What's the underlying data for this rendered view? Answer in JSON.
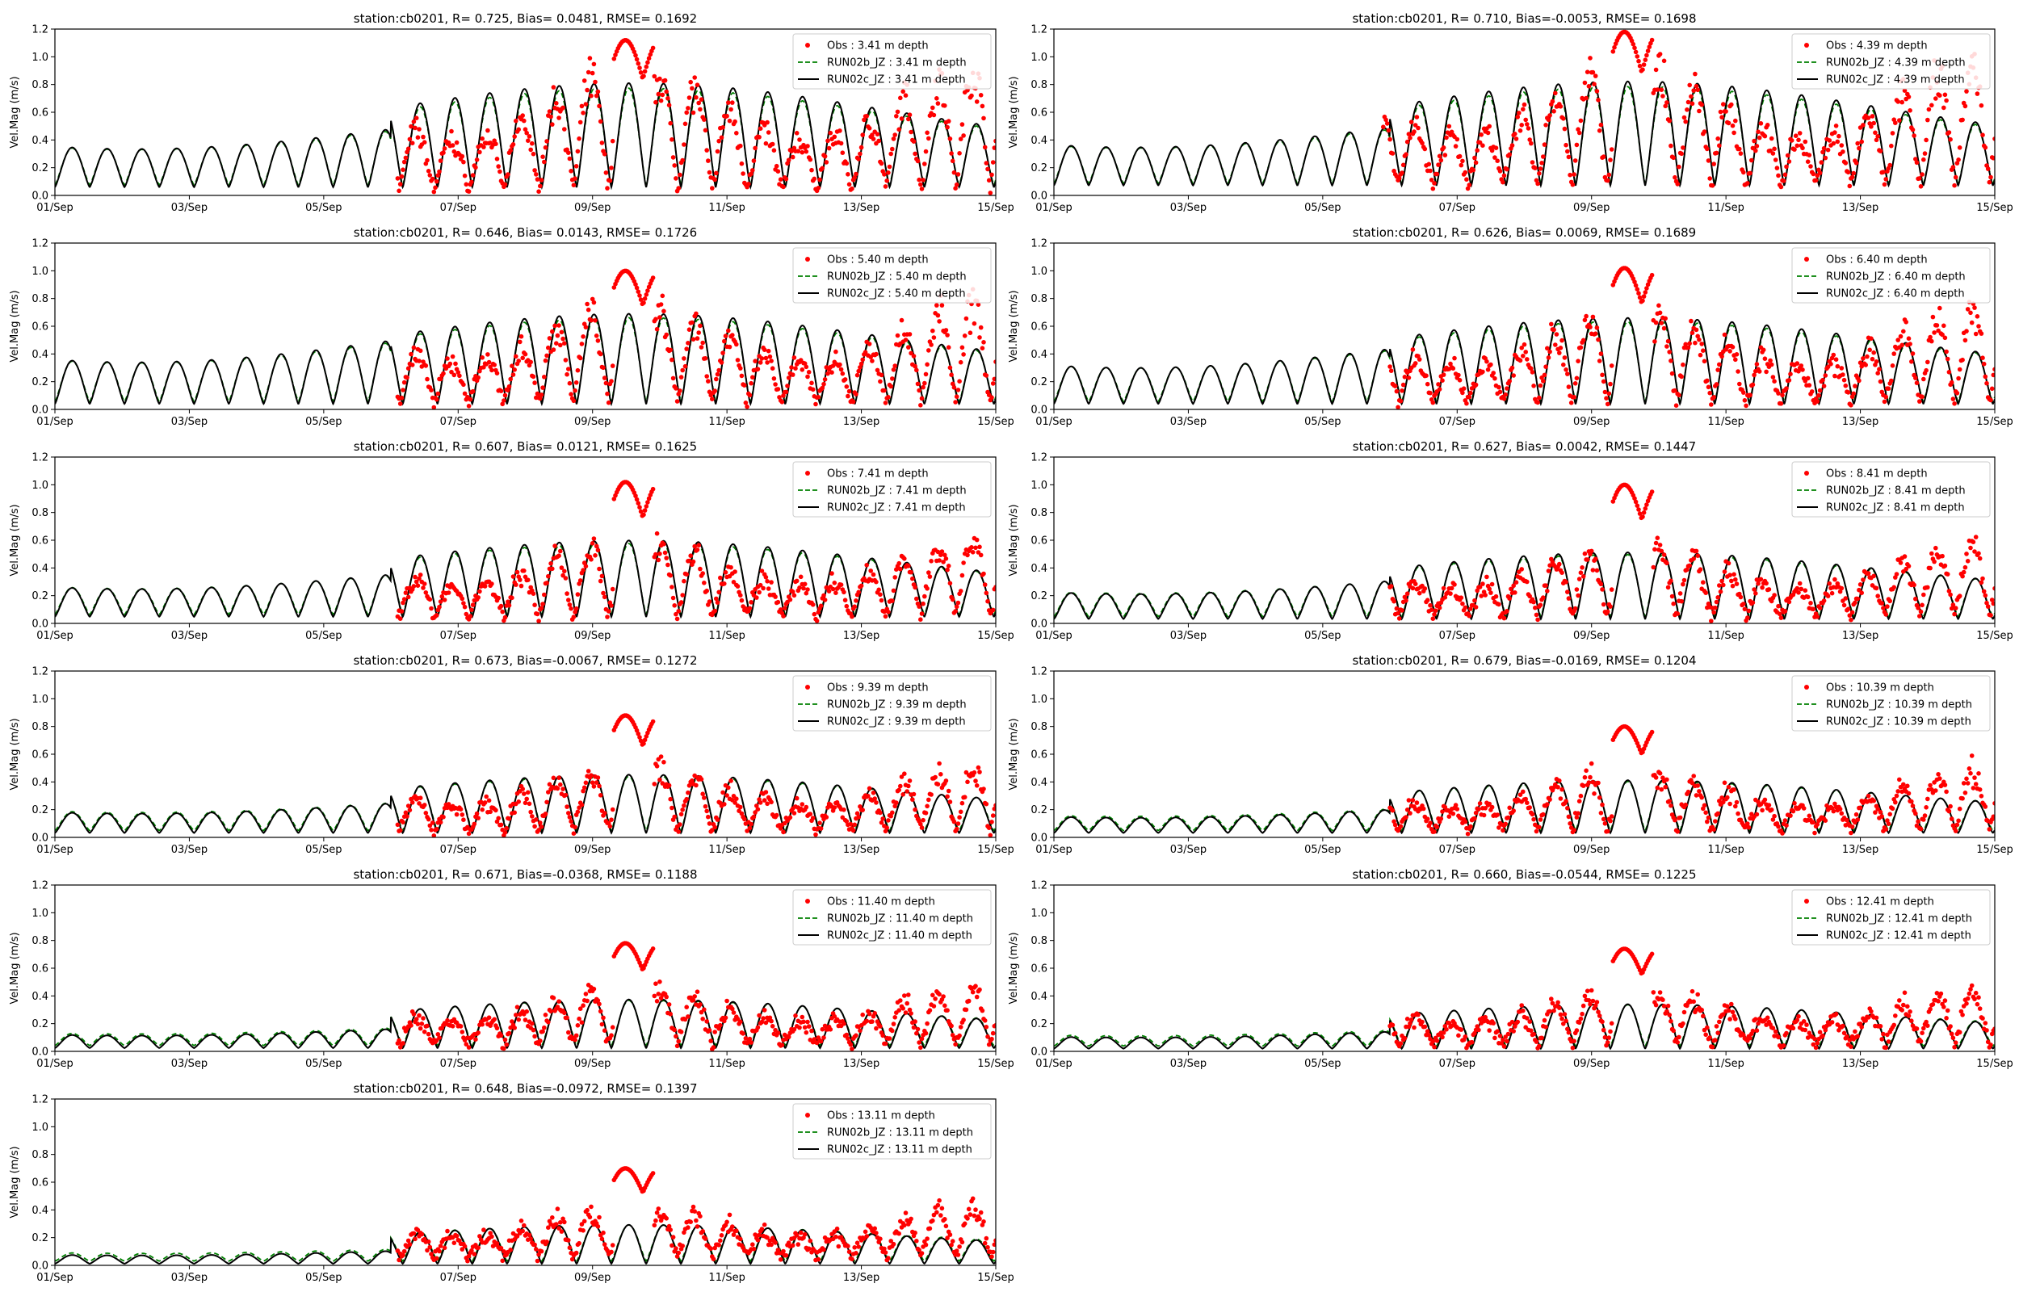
{
  "figure": {
    "ylabel": "Vel.Mag (m/s)",
    "x_ticks": [
      "01/Sep",
      "03/Sep",
      "05/Sep",
      "07/Sep",
      "09/Sep",
      "11/Sep",
      "13/Sep",
      "15/Sep"
    ],
    "y_ticks": [
      "0.0",
      "0.2",
      "0.4",
      "0.6",
      "0.8",
      "1.0",
      "1.2"
    ],
    "xlim_days": [
      0,
      14
    ],
    "ylim": [
      0,
      1.2
    ],
    "colors": {
      "obs": "#ff0000",
      "run02b": "#008000",
      "run02c": "#000000"
    },
    "legend_placement": "top-right"
  },
  "chart_data": [
    {
      "type": "line",
      "title": "station:cb0201, R= 0.725, Bias= 0.0481, RMSE= 0.1692",
      "legend": [
        "Obs : 3.41 m depth",
        "RUN02b_JZ : 3.41 m depth",
        "RUN02c_JZ : 3.41 m depth"
      ],
      "model_base": 0.15,
      "model_amp": 0.55,
      "model_amp_late": 0.75,
      "obs_base": 0.1,
      "obs_amp": 0.85,
      "obs_start_day": 5.1,
      "obs_peak": 1.12
    },
    {
      "type": "line",
      "title": "station:cb0201, R= 0.710, Bias=-0.0053, RMSE= 0.1698",
      "legend": [
        "Obs : 4.39 m depth",
        "RUN02b_JZ : 4.39 m depth",
        "RUN02c_JZ : 4.39 m depth"
      ],
      "model_base": 0.18,
      "model_amp": 0.55,
      "model_amp_late": 0.75,
      "obs_base": 0.15,
      "obs_amp": 0.85,
      "obs_start_day": 4.9,
      "obs_peak": 1.18
    },
    {
      "type": "line",
      "title": "station:cb0201, R= 0.646, Bias= 0.0143, RMSE= 0.1726",
      "legend": [
        "Obs : 5.40 m depth",
        "RUN02b_JZ : 5.40 m depth",
        "RUN02c_JZ : 5.40 m depth"
      ],
      "model_base": 0.1,
      "model_amp": 0.6,
      "model_amp_late": 0.65,
      "obs_base": 0.1,
      "obs_amp": 0.7,
      "obs_start_day": 5.1,
      "obs_peak": 1.0
    },
    {
      "type": "line",
      "title": "station:cb0201, R= 0.626, Bias= 0.0069, RMSE= 0.1689",
      "legend": [
        "Obs : 6.40 m depth",
        "RUN02b_JZ : 6.40 m depth",
        "RUN02c_JZ : 6.40 m depth"
      ],
      "model_base": 0.1,
      "model_amp": 0.52,
      "model_amp_late": 0.62,
      "obs_base": 0.1,
      "obs_amp": 0.65,
      "obs_start_day": 5.0,
      "obs_peak": 1.02
    },
    {
      "type": "line",
      "title": "station:cb0201, R= 0.607, Bias= 0.0121, RMSE= 0.1625",
      "legend": [
        "Obs : 7.41 m depth",
        "RUN02b_JZ : 7.41 m depth",
        "RUN02c_JZ : 7.41 m depth"
      ],
      "model_base": 0.12,
      "model_amp": 0.4,
      "model_amp_late": 0.55,
      "obs_base": 0.1,
      "obs_amp": 0.55,
      "obs_start_day": 5.1,
      "obs_peak": 1.02
    },
    {
      "type": "line",
      "title": "station:cb0201, R= 0.627, Bias= 0.0042, RMSE= 0.1447",
      "legend": [
        "Obs : 8.41 m depth",
        "RUN02b_JZ : 8.41 m depth",
        "RUN02c_JZ : 8.41 m depth"
      ],
      "model_base": 0.08,
      "model_amp": 0.36,
      "model_amp_late": 0.48,
      "obs_base": 0.1,
      "obs_amp": 0.5,
      "obs_start_day": 5.0,
      "obs_peak": 1.0
    },
    {
      "type": "line",
      "title": "station:cb0201, R= 0.673, Bias=-0.0067, RMSE= 0.1272",
      "legend": [
        "Obs : 9.39 m depth",
        "RUN02b_JZ : 9.39 m depth",
        "RUN02c_JZ : 9.39 m depth"
      ],
      "model_base": 0.08,
      "model_amp": 0.28,
      "model_amp_late": 0.42,
      "obs_base": 0.1,
      "obs_amp": 0.45,
      "obs_start_day": 5.1,
      "obs_peak": 0.88
    },
    {
      "type": "line",
      "title": "station:cb0201, R= 0.679, Bias=-0.0169, RMSE= 0.1204",
      "legend": [
        "Obs : 10.39 m depth",
        "RUN02b_JZ : 10.39 m depth",
        "RUN02c_JZ : 10.39 m depth"
      ],
      "model_base": 0.08,
      "model_amp": 0.22,
      "model_amp_late": 0.38,
      "obs_base": 0.1,
      "obs_amp": 0.42,
      "obs_start_day": 5.0,
      "obs_peak": 0.8
    },
    {
      "type": "line",
      "title": "station:cb0201, R= 0.671, Bias=-0.0368, RMSE= 0.1188",
      "legend": [
        "Obs : 11.40 m depth",
        "RUN02b_JZ : 11.40 m depth",
        "RUN02c_JZ : 11.40 m depth"
      ],
      "model_base": 0.06,
      "model_amp": 0.18,
      "model_amp_late": 0.35,
      "obs_base": 0.1,
      "obs_amp": 0.4,
      "obs_start_day": 5.1,
      "obs_peak": 0.78
    },
    {
      "type": "line",
      "title": "station:cb0201, R= 0.660, Bias=-0.0544, RMSE= 0.1225",
      "legend": [
        "Obs : 12.41 m depth",
        "RUN02b_JZ : 12.41 m depth",
        "RUN02c_JZ : 12.41 m depth"
      ],
      "model_base": 0.05,
      "model_amp": 0.16,
      "model_amp_late": 0.32,
      "obs_base": 0.1,
      "obs_amp": 0.38,
      "obs_start_day": 5.0,
      "obs_peak": 0.74
    },
    {
      "type": "line",
      "title": "station:cb0201, R= 0.648, Bias=-0.0972, RMSE= 0.1397",
      "legend": [
        "Obs : 13.11 m depth",
        "RUN02b_JZ : 13.11 m depth",
        "RUN02c_JZ : 13.11 m depth"
      ],
      "model_base": 0.03,
      "model_amp": 0.12,
      "model_amp_late": 0.28,
      "obs_base": 0.12,
      "obs_amp": 0.35,
      "obs_start_day": 5.1,
      "obs_peak": 0.7
    }
  ]
}
